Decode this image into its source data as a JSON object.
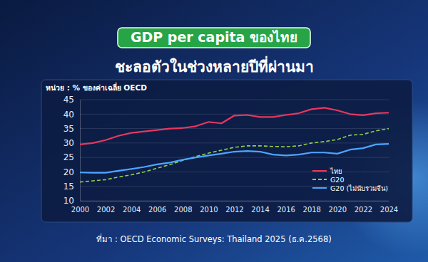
{
  "chart_data": {
    "type": "line",
    "title": "GDP per capita ของไทย",
    "subtitle": "ชะลอตัวในช่วงหลายปีที่ผ่านมา",
    "y_label": "หน่วย : % ของค่าเฉลี่ย OECD",
    "source": "ที่มา : OECD Economic Surveys: Thailand 2025 (ธ.ค.2568)",
    "x": [
      2000,
      2001,
      2002,
      2003,
      2004,
      2005,
      2006,
      2007,
      2008,
      2009,
      2010,
      2011,
      2012,
      2013,
      2014,
      2015,
      2016,
      2017,
      2018,
      2019,
      2020,
      2021,
      2022,
      2023,
      2024
    ],
    "xlim": [
      2000,
      2024
    ],
    "xticks": [
      2000,
      2002,
      2004,
      2006,
      2008,
      2010,
      2012,
      2014,
      2016,
      2018,
      2020,
      2022,
      2024
    ],
    "ylim": [
      10,
      45
    ],
    "yticks": [
      10,
      15,
      20,
      25,
      30,
      35,
      40,
      45
    ],
    "grid": true,
    "legend": "lower right",
    "series": [
      {
        "name": "ไทย",
        "color": "#e8375f",
        "line_style": "solid",
        "values": [
          29.5,
          30.0,
          31.0,
          32.5,
          33.5,
          34.0,
          34.5,
          35.0,
          35.2,
          35.8,
          37.3,
          36.8,
          39.5,
          39.7,
          39.0,
          39.0,
          39.7,
          40.3,
          41.7,
          42.2,
          41.3,
          40.0,
          39.6,
          40.3,
          40.5
        ]
      },
      {
        "name": "G20",
        "color": "#8fd14f",
        "line_style": "dashed",
        "values": [
          16.5,
          16.9,
          17.3,
          18.2,
          19.0,
          20.0,
          21.3,
          22.5,
          24.0,
          25.3,
          26.5,
          27.5,
          28.5,
          29.0,
          29.0,
          28.8,
          28.7,
          29.0,
          30.0,
          30.5,
          31.2,
          32.7,
          33.0,
          34.2,
          35.0
        ]
      },
      {
        "name": "G20 (ไม่นับรวมจีน)",
        "color": "#4da6ff",
        "line_style": "solid",
        "values": [
          19.8,
          19.7,
          19.7,
          20.4,
          21.0,
          21.7,
          22.6,
          23.2,
          24.2,
          25.0,
          25.7,
          26.3,
          27.0,
          27.2,
          27.0,
          26.0,
          25.7,
          26.0,
          26.7,
          26.7,
          26.3,
          27.7,
          28.2,
          29.5,
          29.7
        ]
      }
    ]
  }
}
